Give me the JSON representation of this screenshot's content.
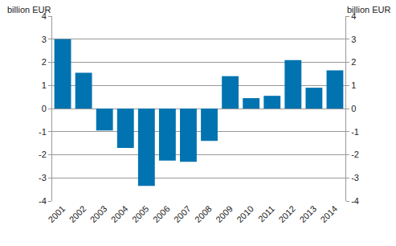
{
  "chart_data": {
    "type": "bar",
    "y_label": "billion EUR",
    "y2_label": "billion EUR",
    "categories": [
      "2001",
      "2002",
      "2003",
      "2004",
      "2005",
      "2006",
      "2007",
      "2008",
      "2009",
      "2010",
      "2011",
      "2012",
      "2013",
      "2014"
    ],
    "values": [
      3.0,
      1.55,
      -0.95,
      -1.7,
      -3.35,
      -2.25,
      -2.3,
      -1.4,
      1.4,
      0.45,
      0.55,
      2.1,
      0.9,
      1.65
    ],
    "color": "#0073b0",
    "ylim": [
      -4,
      4
    ],
    "yticks": [
      -4,
      -3,
      -2,
      -1,
      0,
      1,
      2,
      3,
      4
    ],
    "y2lim": [
      -4,
      4
    ],
    "y2ticks": [
      -4,
      -3,
      -2,
      -1,
      0,
      1,
      2,
      3,
      4
    ],
    "grid": true
  }
}
